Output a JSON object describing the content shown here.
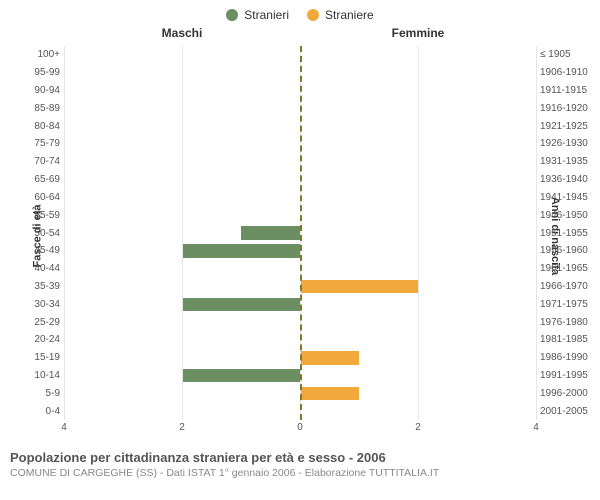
{
  "legend": {
    "male": {
      "label": "Stranieri",
      "color": "#6b8e63"
    },
    "female": {
      "label": "Straniere",
      "color": "#f0a93a"
    }
  },
  "panels": {
    "left": "Maschi",
    "right": "Femmine"
  },
  "y_axis_left_label": "Fasce di età",
  "y_axis_right_label": "Anni di nascita",
  "chart": {
    "type": "population-pyramid",
    "background_color": "#ffffff",
    "grid_color": "#e6e6e6",
    "center_line_color": "#7a7a2a",
    "xlim": 4,
    "xticks": [
      4,
      2,
      0,
      2,
      4
    ],
    "rows": [
      {
        "age": "100+",
        "birth": "≤ 1905",
        "m": 0,
        "f": 0
      },
      {
        "age": "95-99",
        "birth": "1906-1910",
        "m": 0,
        "f": 0
      },
      {
        "age": "90-94",
        "birth": "1911-1915",
        "m": 0,
        "f": 0
      },
      {
        "age": "85-89",
        "birth": "1916-1920",
        "m": 0,
        "f": 0
      },
      {
        "age": "80-84",
        "birth": "1921-1925",
        "m": 0,
        "f": 0
      },
      {
        "age": "75-79",
        "birth": "1926-1930",
        "m": 0,
        "f": 0
      },
      {
        "age": "70-74",
        "birth": "1931-1935",
        "m": 0,
        "f": 0
      },
      {
        "age": "65-69",
        "birth": "1936-1940",
        "m": 0,
        "f": 0
      },
      {
        "age": "60-64",
        "birth": "1941-1945",
        "m": 0,
        "f": 0
      },
      {
        "age": "55-59",
        "birth": "1946-1950",
        "m": 0,
        "f": 0
      },
      {
        "age": "50-54",
        "birth": "1951-1955",
        "m": 1,
        "f": 0
      },
      {
        "age": "45-49",
        "birth": "1956-1960",
        "m": 2,
        "f": 0
      },
      {
        "age": "40-44",
        "birth": "1961-1965",
        "m": 0,
        "f": 0
      },
      {
        "age": "35-39",
        "birth": "1966-1970",
        "m": 0,
        "f": 2
      },
      {
        "age": "30-34",
        "birth": "1971-1975",
        "m": 2,
        "f": 0
      },
      {
        "age": "25-29",
        "birth": "1976-1980",
        "m": 0,
        "f": 0
      },
      {
        "age": "20-24",
        "birth": "1981-1985",
        "m": 0,
        "f": 0
      },
      {
        "age": "15-19",
        "birth": "1986-1990",
        "m": 0,
        "f": 1
      },
      {
        "age": "10-14",
        "birth": "1991-1995",
        "m": 2,
        "f": 0
      },
      {
        "age": "5-9",
        "birth": "1996-2000",
        "m": 0,
        "f": 1
      },
      {
        "age": "0-4",
        "birth": "2001-2005",
        "m": 0,
        "f": 0
      }
    ]
  },
  "footer": {
    "title": "Popolazione per cittadinanza straniera per età e sesso - 2006",
    "subtitle": "COMUNE DI CARGEGHE (SS) - Dati ISTAT 1° gennaio 2006 - Elaborazione TUTTITALIA.IT"
  },
  "style": {
    "title_fontsize": 13,
    "subtitle_fontsize": 10.5,
    "tick_fontsize": 10,
    "label_fontsize": 11
  }
}
